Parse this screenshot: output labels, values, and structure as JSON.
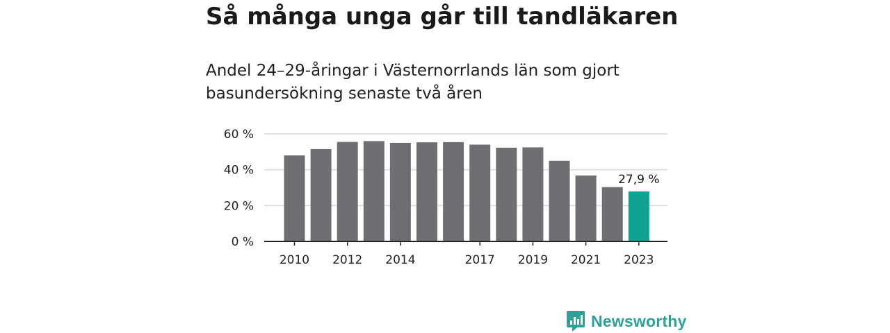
{
  "title": "Så många unga går till tandläkaren",
  "subtitle": "Andel 24–29-åringar i Västernorrlands län som gjort basundersökning senaste två åren",
  "logo_text": "Newsworthy",
  "colors": {
    "bar": "#6f6e73",
    "highlight": "#0fa396",
    "grid": "#d9d9d9",
    "axis": "#222222",
    "brand": "#2fa098"
  },
  "chart_data": {
    "type": "bar",
    "title": "Så många unga går till tandläkaren",
    "subtitle": "Andel 24–29-åringar i Västernorrlands län som gjort basundersökning senaste två åren",
    "categories": [
      "2010",
      "2011",
      "2012",
      "2013",
      "2014",
      "2015",
      "2016",
      "2017",
      "2018",
      "2019",
      "2020",
      "2021",
      "2022",
      "2023"
    ],
    "values": [
      48,
      51.5,
      55.5,
      56,
      55,
      55.3,
      55.4,
      54,
      52.3,
      52.5,
      45,
      36.8,
      30.3,
      27.9
    ],
    "highlight_index": 13,
    "data_labels": [
      {
        "index": 13,
        "text": "27,9 %"
      }
    ],
    "ylim": [
      0,
      60
    ],
    "yticks": [
      {
        "value": 0,
        "label": "0 %"
      },
      {
        "value": 20,
        "label": "20 %"
      },
      {
        "value": 40,
        "label": "40 %"
      },
      {
        "value": 60,
        "label": "60 %"
      }
    ],
    "xticks": [
      {
        "category": "2010",
        "label": "2010"
      },
      {
        "category": "2012",
        "label": "2012"
      },
      {
        "category": "2014",
        "label": "2014"
      },
      {
        "category": "2017",
        "label": "2017"
      },
      {
        "category": "2019",
        "label": "2019"
      },
      {
        "category": "2021",
        "label": "2021"
      },
      {
        "category": "2023",
        "label": "2023"
      }
    ],
    "grid": true,
    "legend": "none"
  }
}
